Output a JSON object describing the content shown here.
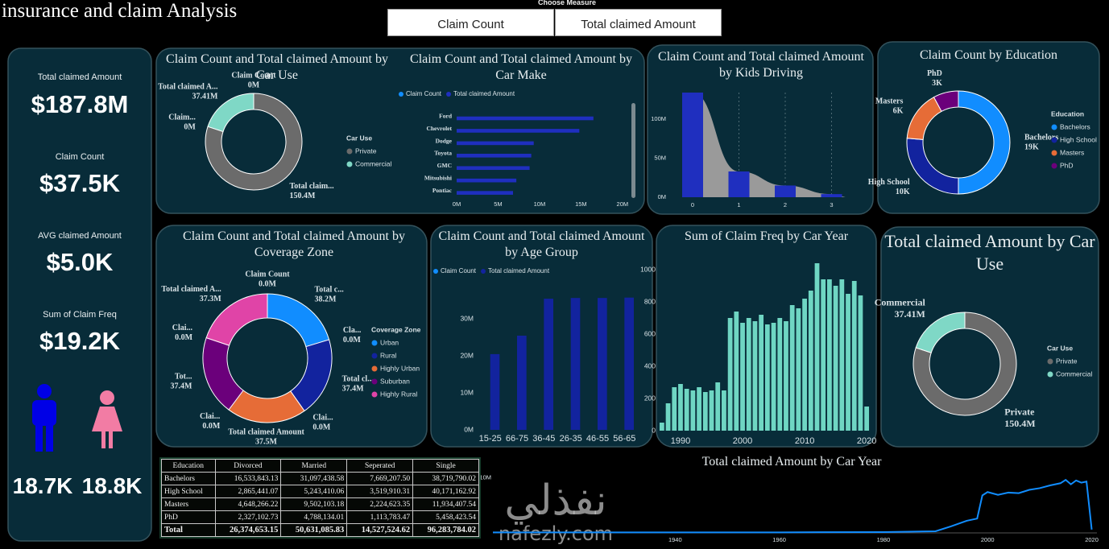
{
  "header": {
    "title": "insurance and claim Analysis",
    "measure_label": "Choose Measure",
    "buttons": [
      "Claim Count",
      "Total claimed Amount"
    ]
  },
  "kpis": [
    {
      "label": "Total claimed Amount",
      "value": "$187.8M"
    },
    {
      "label": "Claim Count",
      "value": "$37.5K"
    },
    {
      "label": "AVG claimed Amount",
      "value": "$5.0K"
    },
    {
      "label": "Sum of Claim Freq",
      "value": "$19.2K"
    }
  ],
  "gender": [
    "18.7K",
    "18.8K"
  ],
  "watermark": {
    "arabic": "نفذلي",
    "latin": "nafezly.com"
  },
  "table": {
    "columns": [
      "Education",
      "Divorced",
      "Married",
      "Seperated",
      "Single"
    ],
    "rows": [
      [
        "Bachelors",
        "16,533,843.13",
        "31,097,438.58",
        "7,669,207.50",
        "38,719,790.02"
      ],
      [
        "High School",
        "2,865,441.07",
        "5,243,410.06",
        "3,519,910.31",
        "40,171,162.92"
      ],
      [
        "Masters",
        "4,648,266.22",
        "9,502,103.18",
        "2,224,623.35",
        "11,934,407.54"
      ],
      [
        "PhD",
        "2,327,102.73",
        "4,788,134.01",
        "1,113,783.47",
        "5,458,423.54"
      ],
      [
        "Total",
        "26,374,653.15",
        "50,631,085.83",
        "14,527,524.62",
        "96,283,784.02"
      ]
    ]
  },
  "chart_data": [
    {
      "type": "donut",
      "title": "Claim Count and Total claimed Amount by Car Use",
      "categories": [
        "Claim Count",
        "Total claim...",
        "Claim...",
        "Total claimed A..."
      ],
      "values": [
        0,
        150.4,
        0,
        37.41
      ],
      "value_labels": [
        "0M",
        "150.4M",
        "0M",
        "37.41M"
      ],
      "colors": [
        "#6b6b6b",
        "#6b6b6b",
        "#7fd8c6",
        "#7fd8c6"
      ],
      "legend_title": "Car Use",
      "legend": [
        {
          "name": "Private",
          "color": "#6b6b6b"
        },
        {
          "name": "Commercial",
          "color": "#7fd8c6"
        }
      ]
    },
    {
      "type": "hbar",
      "title": "Claim Count and Total claimed Amount by Car Make",
      "categories": [
        "Ford",
        "Chevrolet",
        "Dodge",
        "Toyota",
        "GMC",
        "Mitsubishi",
        "Pontiac"
      ],
      "series": [
        {
          "name": "Claim Count",
          "color": "#118dff",
          "values": [
            0,
            0,
            0,
            0,
            0,
            0,
            0
          ]
        },
        {
          "name": "Total claimed Amount",
          "color": "#1f2fbf",
          "values": [
            16.5,
            14.8,
            9.3,
            9.0,
            8.8,
            7.2,
            6.8
          ]
        }
      ],
      "xlim": [
        0,
        20.5
      ],
      "xticks": [
        {
          "value": 0,
          "label": "0M"
        },
        {
          "value": 5,
          "label": "5M"
        },
        {
          "value": 10,
          "label": "10M"
        },
        {
          "value": 15,
          "label": "15M"
        },
        {
          "value": 20,
          "label": "20M"
        }
      ]
    },
    {
      "type": "ribbon",
      "title": "Claim Count and Total claimed Amount by Kids Driving",
      "categories": [
        "0",
        "1",
        "2",
        "3"
      ],
      "series": [
        {
          "color": "#1f2fbf",
          "values": [
            134,
            33,
            15,
            4
          ]
        }
      ],
      "ribbon_color": "#9a9a9a",
      "ylim": [
        0,
        134
      ],
      "yticks": [
        {
          "value": 0,
          "label": "0M"
        },
        {
          "value": 50,
          "label": "50M"
        },
        {
          "value": 100,
          "label": "100M"
        }
      ]
    },
    {
      "type": "donut",
      "title": "Claim Count by Education",
      "categories": [
        "Bachelors",
        "High School",
        "Masters",
        "PhD"
      ],
      "values": [
        19,
        10,
        6,
        3
      ],
      "value_labels": [
        "19K",
        "10K",
        "6K",
        "3K"
      ],
      "colors": [
        "#118dff",
        "#12239e",
        "#e66c37",
        "#6b007b"
      ],
      "legend_title": "Education",
      "legend": [
        {
          "name": "Bachelors",
          "color": "#118dff"
        },
        {
          "name": "High School",
          "color": "#12239e"
        },
        {
          "name": "Masters",
          "color": "#e66c37"
        },
        {
          "name": "PhD",
          "color": "#6b007b"
        }
      ]
    },
    {
      "type": "donut",
      "title": "Claim Count and Total claimed Amount by Coverage Zone",
      "categories": [
        "Claim Count",
        "Total c...",
        "Cla...",
        "Total cl...",
        "Clai...",
        "Total claimed Amount",
        "Clai...",
        "Tot...",
        "Clai...",
        "Total claimed A..."
      ],
      "values": [
        0,
        38.2,
        0,
        37.4,
        0,
        37.5,
        0,
        37.4,
        0,
        37.3
      ],
      "value_labels": [
        "0.0M",
        "38.2M",
        "0.0M",
        "37.4M",
        "0.0M",
        "37.5M",
        "0.0M",
        "37.4M",
        "0.0M",
        "37.3M"
      ],
      "colors": [
        "#118dff",
        "#118dff",
        "#12239e",
        "#12239e",
        "#e66c37",
        "#e66c37",
        "#6b007b",
        "#6b007b",
        "#e044a7",
        "#e044a7"
      ],
      "legend_title": "Coverage Zone",
      "legend": [
        {
          "name": "Urban",
          "color": "#118dff"
        },
        {
          "name": "Rural",
          "color": "#12239e"
        },
        {
          "name": "Highly Urban",
          "color": "#e66c37"
        },
        {
          "name": "Suburban",
          "color": "#6b007b"
        },
        {
          "name": "Highly Rural",
          "color": "#e044a7"
        }
      ]
    },
    {
      "type": "bar",
      "title": "Claim Count and Total claimed Amount by Age Group",
      "categories": [
        "15-25",
        "66-75",
        "36-45",
        "26-35",
        "46-55",
        "56-65"
      ],
      "series": [
        {
          "name": "Claim Count",
          "color": "#118dff",
          "values": [
            0,
            0,
            0,
            0,
            0,
            0
          ]
        },
        {
          "name": "Total claimed Amount",
          "color": "#12239e",
          "values": [
            20.5,
            25.5,
            35.5,
            35.7,
            35.7,
            35.8
          ]
        }
      ],
      "ylim": [
        0,
        39
      ],
      "yticks": [
        {
          "value": 0,
          "label": "0M"
        },
        {
          "value": 10,
          "label": "10M"
        },
        {
          "value": 20,
          "label": "20M"
        },
        {
          "value": 30,
          "label": "30M"
        }
      ]
    },
    {
      "type": "bar",
      "title": "Sum of Claim Freq by Car Year",
      "x": [
        1987,
        1988,
        1989,
        1990,
        1991,
        1992,
        1993,
        1994,
        1995,
        1996,
        1997,
        1998,
        1999,
        2000,
        2001,
        2002,
        2003,
        2004,
        2005,
        2006,
        2007,
        2008,
        2009,
        2010,
        2011,
        2012,
        2013,
        2014,
        2015,
        2016,
        2017,
        2018,
        2019,
        2020
      ],
      "values": [
        50,
        170,
        270,
        290,
        260,
        250,
        270,
        240,
        250,
        300,
        250,
        700,
        740,
        670,
        700,
        680,
        720,
        660,
        670,
        700,
        680,
        780,
        760,
        820,
        870,
        1040,
        940,
        940,
        900,
        940,
        850,
        930,
        840,
        150
      ],
      "color": "#6fd6c3",
      "xlim": [
        1986.5,
        2020.5
      ],
      "xticks": [
        1990,
        2000,
        2010,
        2020
      ],
      "ylim": [
        0,
        1075
      ],
      "yticks": [
        0,
        200,
        400,
        600,
        800,
        1000
      ]
    },
    {
      "type": "line",
      "title": "Total claimed Amount by Car Year",
      "x": [
        1905,
        1920,
        1940,
        1960,
        1980,
        1990,
        1993,
        1996,
        1998,
        1999,
        2000,
        2002,
        2004,
        2006,
        2008,
        2010,
        2012,
        2014,
        2015,
        2016,
        2017,
        2018,
        2019,
        2020
      ],
      "values": [
        0.1,
        0.1,
        0.1,
        0.1,
        0.15,
        0.3,
        1.2,
        2.2,
        2.6,
        6.8,
        7.4,
        6.9,
        7.3,
        7.2,
        7.8,
        8.1,
        8.6,
        9.0,
        9.6,
        8.8,
        9.5,
        9.1,
        9.3,
        0.6
      ],
      "color": "#118dff",
      "xlim": [
        1905,
        2021
      ],
      "xticks": [
        1940,
        1960,
        1980,
        2000,
        2020
      ],
      "ylim": [
        0,
        10.5
      ],
      "yticks": [
        {
          "value": 10,
          "label": "10M"
        }
      ]
    },
    {
      "type": "donut",
      "title": "Total claimed Amount by Car Use",
      "categories": [
        "Private",
        "Commercial"
      ],
      "values": [
        150.4,
        37.41
      ],
      "value_labels": [
        "150.4M",
        "37.41M"
      ],
      "colors": [
        "#6b6b6b",
        "#7fd8c6"
      ],
      "legend_title": "Car Use",
      "legend": [
        {
          "name": "Private",
          "color": "#6b6b6b"
        },
        {
          "name": "Commercial",
          "color": "#7fd8c6"
        }
      ]
    }
  ]
}
